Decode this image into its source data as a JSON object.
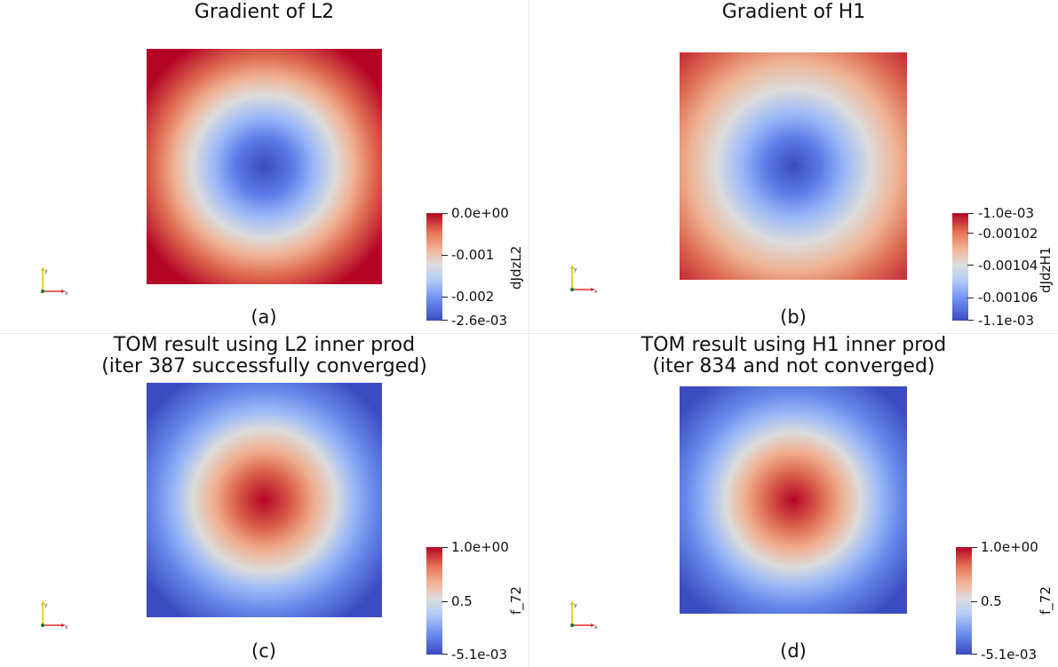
{
  "panels": [
    {
      "title": "Gradient of L2",
      "caption": "(a)",
      "colorbar": {
        "name": "dJdzL2",
        "labels": [
          "0.0e+00",
          "-0.001",
          "-0.002",
          "-2.6e-03"
        ]
      },
      "field": "min-center"
    },
    {
      "title": "Gradient of H1",
      "caption": "(b)",
      "colorbar": {
        "name": "dJdzH1",
        "labels": [
          "-1.0e-03",
          "-0.00102",
          "-0.00104",
          "-0.00106",
          "-1.1e-03"
        ]
      },
      "field": "min-center"
    },
    {
      "title": "TOM result using L2 inner prod\n(iter 387 successfully converged)",
      "caption": "(c)",
      "colorbar": {
        "name": "f_72",
        "labels": [
          "1.0e+00",
          "0.5",
          "-5.1e-03"
        ]
      },
      "field": "max-center"
    },
    {
      "title": "TOM result using H1 inner prod\n(iter 834 and not converged)",
      "caption": "(d)",
      "colorbar": {
        "name": "f_72",
        "labels": [
          "1.0e+00",
          "0.5",
          "-5.1e-03"
        ]
      },
      "field": "max-center"
    }
  ],
  "colormap": {
    "low": "#3b4cc0",
    "mid": "#dddddd",
    "high": "#b40426"
  },
  "axes_icon": {
    "x_label": "x",
    "y_label": "y",
    "x_color": "#e03030",
    "y_color": "#d8c400",
    "origin_color": "#1a7a1a"
  }
}
